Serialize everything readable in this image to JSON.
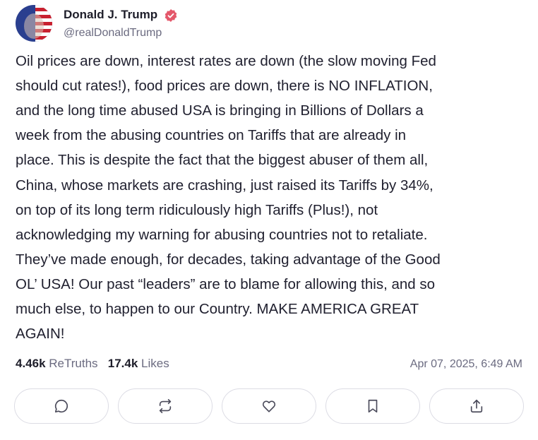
{
  "author": {
    "name": "Donald J. Trump",
    "handle": "@realDonaldTrump"
  },
  "post": {
    "lines": [
      "Oil prices are down, interest rates are down (the slow moving Fed",
      "should cut rates!), food prices are down, there is NO INFLATION,",
      "and the long time abused USA is bringing in Billions of Dollars a",
      "week from the abusing countries on Tariffs that are already in",
      "place. This is despite the fact that the biggest abuser of them all,",
      "China, whose markets are crashing, just raised its Tariffs by 34%,",
      "on top of its long term ridiculously high Tariffs (Plus!), not",
      "acknowledging my warning for abusing countries not to retaliate.",
      "They’ve made enough, for decades, taking advantage of the Good",
      "OL’ USA! Our past “leaders” are to blame for allowing this, and so",
      "much else, to happen to our Country. MAKE AMERICA GREAT",
      "AGAIN!"
    ]
  },
  "stats": {
    "retruths_count": "4.46k",
    "retruths_label": "ReTruths",
    "likes_count": "17.4k",
    "likes_label": "Likes"
  },
  "timestamp": "Apr 07, 2025, 6:49 AM"
}
